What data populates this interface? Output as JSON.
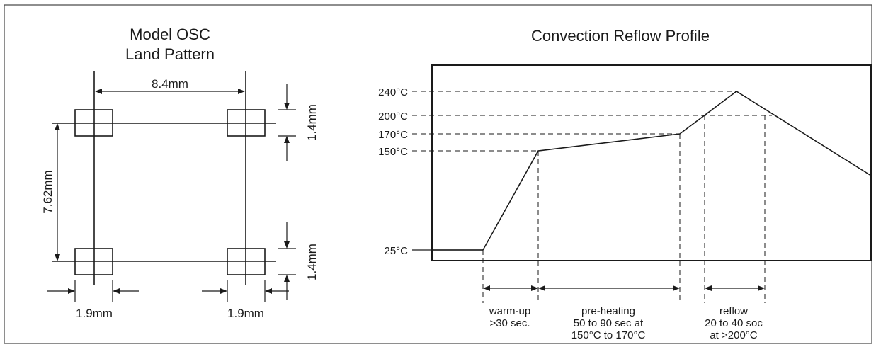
{
  "land_pattern": {
    "title_line1": "Model OSC",
    "title_line2": "Land Pattern",
    "width_label": "8.4mm",
    "height_label": "7.62mm",
    "pad_top_label": "1.4mm",
    "pad_bottom_label": "1.4mm",
    "pad_left_label": "1.9mm",
    "pad_right_label": "1.9mm"
  },
  "reflow": {
    "title": "Convection Reflow Profile",
    "temps": [
      "240°C",
      "200°C",
      "170°C",
      "150°C",
      "25°C"
    ],
    "phases": {
      "warmup": [
        "warm-up",
        ">30 sec."
      ],
      "preheat": [
        "pre-heating",
        "50 to 90 sec at",
        "150°C to 170°C"
      ],
      "reflow": [
        "reflow",
        "20 to 40 soc",
        "at >200°C"
      ]
    }
  }
}
